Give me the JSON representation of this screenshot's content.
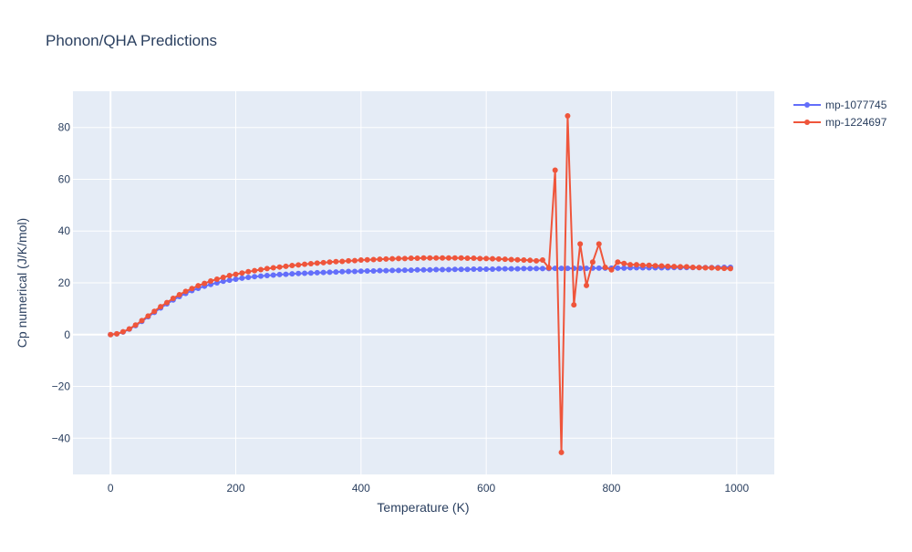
{
  "chart_data": {
    "type": "line",
    "title": "Phonon/QHA Predictions",
    "xlabel": "Temperature (K)",
    "ylabel": "Cp numerical (J/K/mol)",
    "xlim": [
      -60,
      1060
    ],
    "ylim": [
      -54,
      94
    ],
    "xticks": [
      0,
      200,
      400,
      600,
      800,
      1000
    ],
    "yticks": [
      -40,
      -20,
      0,
      20,
      40,
      60,
      80
    ],
    "grid": true,
    "legend_position": "top-right",
    "series": [
      {
        "name": "mp-1077745",
        "color": "#636efa",
        "x": [
          0,
          10,
          20,
          30,
          40,
          50,
          60,
          70,
          80,
          90,
          100,
          110,
          120,
          130,
          140,
          150,
          160,
          170,
          180,
          190,
          200,
          210,
          220,
          230,
          240,
          250,
          260,
          270,
          280,
          290,
          300,
          310,
          320,
          330,
          340,
          350,
          360,
          370,
          380,
          390,
          400,
          410,
          420,
          430,
          440,
          450,
          460,
          470,
          480,
          490,
          500,
          510,
          520,
          530,
          540,
          550,
          560,
          570,
          580,
          590,
          600,
          610,
          620,
          630,
          640,
          650,
          660,
          670,
          680,
          690,
          700,
          710,
          720,
          730,
          740,
          750,
          760,
          770,
          780,
          790,
          800,
          810,
          820,
          830,
          840,
          850,
          860,
          870,
          880,
          890,
          900,
          910,
          920,
          930,
          940,
          950,
          960,
          970,
          980,
          990
        ],
        "y": [
          0,
          0.3,
          1.0,
          2.1,
          3.5,
          5.1,
          6.9,
          8.6,
          10.3,
          11.9,
          13.4,
          14.7,
          15.9,
          17.0,
          17.9,
          18.7,
          19.4,
          20.0,
          20.6,
          21.0,
          21.4,
          21.8,
          22.1,
          22.4,
          22.6,
          22.8,
          23.0,
          23.2,
          23.3,
          23.5,
          23.6,
          23.7,
          23.8,
          23.9,
          24.0,
          24.1,
          24.2,
          24.3,
          24.4,
          24.4,
          24.5,
          24.6,
          24.6,
          24.7,
          24.7,
          24.8,
          24.8,
          24.9,
          24.9,
          25.0,
          25.0,
          25.0,
          25.1,
          25.1,
          25.1,
          25.2,
          25.2,
          25.2,
          25.3,
          25.3,
          25.3,
          25.3,
          25.4,
          25.4,
          25.4,
          25.4,
          25.5,
          25.5,
          25.5,
          25.5,
          25.5,
          25.6,
          25.6,
          25.6,
          25.6,
          25.6,
          25.6,
          25.7,
          25.7,
          25.7,
          25.7,
          25.7,
          25.7,
          25.8,
          25.8,
          25.8,
          25.8,
          25.8,
          25.8,
          25.8,
          25.9,
          25.9,
          25.9,
          25.9,
          25.9,
          25.9,
          25.9,
          25.9,
          26.0,
          26.0
        ]
      },
      {
        "name": "mp-1224697",
        "color": "#ef553b",
        "x": [
          0,
          10,
          20,
          30,
          40,
          50,
          60,
          70,
          80,
          90,
          100,
          110,
          120,
          130,
          140,
          150,
          160,
          170,
          180,
          190,
          200,
          210,
          220,
          230,
          240,
          250,
          260,
          270,
          280,
          290,
          300,
          310,
          320,
          330,
          340,
          350,
          360,
          370,
          380,
          390,
          400,
          410,
          420,
          430,
          440,
          450,
          460,
          470,
          480,
          490,
          500,
          510,
          520,
          530,
          540,
          550,
          560,
          570,
          580,
          590,
          600,
          610,
          620,
          630,
          640,
          650,
          660,
          670,
          680,
          690,
          700,
          710,
          720,
          730,
          740,
          750,
          760,
          770,
          780,
          790,
          800,
          810,
          820,
          830,
          840,
          850,
          860,
          870,
          880,
          890,
          900,
          910,
          920,
          930,
          940,
          950,
          960,
          970,
          980,
          990
        ],
        "y": [
          0,
          0.3,
          1.1,
          2.2,
          3.7,
          5.4,
          7.2,
          9.0,
          10.8,
          12.4,
          14.0,
          15.4,
          16.7,
          17.8,
          18.9,
          19.8,
          20.7,
          21.4,
          22.1,
          22.8,
          23.3,
          23.8,
          24.3,
          24.7,
          25.1,
          25.5,
          25.8,
          26.1,
          26.4,
          26.7,
          26.9,
          27.2,
          27.4,
          27.6,
          27.8,
          28.0,
          28.2,
          28.3,
          28.5,
          28.6,
          28.8,
          28.9,
          29.0,
          29.1,
          29.2,
          29.3,
          29.4,
          29.4,
          29.5,
          29.5,
          29.6,
          29.6,
          29.6,
          29.6,
          29.6,
          29.6,
          29.6,
          29.5,
          29.5,
          29.4,
          29.4,
          29.3,
          29.2,
          29.1,
          29.0,
          28.9,
          28.8,
          28.7,
          28.5,
          28.8,
          25.8,
          63.5,
          -45.5,
          84.5,
          11.5,
          35.0,
          19.0,
          28.0,
          35.0,
          26.0,
          25.0,
          28.0,
          27.5,
          27.0,
          27.0,
          26.8,
          26.8,
          26.6,
          26.5,
          26.4,
          26.3,
          26.2,
          26.2,
          26.0,
          25.9,
          25.8,
          25.8,
          25.7,
          25.6,
          25.5
        ]
      }
    ]
  }
}
